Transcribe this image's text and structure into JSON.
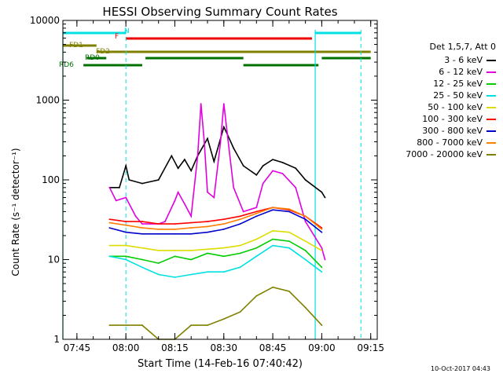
{
  "chart_data": {
    "type": "line",
    "title": "HESSI Observing Summary Count Rates",
    "xlabel": "Start Time (14-Feb-16 07:40:42)",
    "ylabel": "Count Rate (s⁻¹ detector⁻¹)",
    "y_scale": "log",
    "ylim": [
      1,
      10000
    ],
    "xlim": [
      "07:40:42",
      "09:17:00"
    ],
    "x_ticks": [
      "07:45",
      "08:00",
      "08:15",
      "08:30",
      "08:45",
      "09:00",
      "09:15"
    ],
    "y_ticks": [
      "1",
      "10",
      "100",
      "1000",
      "10000"
    ],
    "grid": false,
    "legend_position": "right",
    "legend_title": "Det 1,5,7, Att 0",
    "series": [
      {
        "name": "3 - 6 keV",
        "color": "#000000",
        "x": [
          "07:55",
          "07:58",
          "08:00",
          "08:01",
          "08:05",
          "08:10",
          "08:14",
          "08:16",
          "08:18",
          "08:20",
          "08:22",
          "08:25",
          "08:27",
          "08:30",
          "08:31",
          "08:33",
          "08:36",
          "08:40",
          "08:42",
          "08:45",
          "08:48",
          "08:52",
          "08:55",
          "09:00",
          "09:01"
        ],
        "values": [
          80,
          80,
          150,
          100,
          90,
          100,
          200,
          140,
          180,
          130,
          200,
          330,
          170,
          460,
          380,
          250,
          150,
          115,
          150,
          180,
          165,
          140,
          100,
          70,
          60
        ]
      },
      {
        "name": "6 - 12 keV",
        "color": "#e000e0",
        "x": [
          "07:55",
          "07:57",
          "08:00",
          "08:03",
          "08:05",
          "08:10",
          "08:12",
          "08:15",
          "08:16",
          "08:18",
          "08:20",
          "08:22",
          "08:23",
          "08:24",
          "08:25",
          "08:27",
          "08:29",
          "08:30",
          "08:31",
          "08:33",
          "08:36",
          "08:40",
          "08:42",
          "08:45",
          "08:48",
          "08:52",
          "08:55",
          "09:00",
          "09:01"
        ],
        "values": [
          80,
          55,
          60,
          35,
          28,
          28,
          30,
          55,
          70,
          50,
          35,
          200,
          900,
          300,
          70,
          60,
          300,
          900,
          400,
          80,
          40,
          45,
          90,
          130,
          120,
          80,
          30,
          14,
          10
        ]
      },
      {
        "name": "12 - 25 keV",
        "color": "#00cc00",
        "x": [
          "07:55",
          "08:00",
          "08:05",
          "08:10",
          "08:15",
          "08:20",
          "08:25",
          "08:30",
          "08:35",
          "08:40",
          "08:45",
          "08:50",
          "08:55",
          "09:00"
        ],
        "values": [
          11,
          11,
          10,
          9,
          11,
          10,
          12,
          11,
          12,
          14,
          18,
          17,
          13,
          8
        ]
      },
      {
        "name": "25 - 50 keV",
        "color": "#00e0e0",
        "x": [
          "07:55",
          "08:00",
          "08:05",
          "08:10",
          "08:15",
          "08:20",
          "08:25",
          "08:30",
          "08:35",
          "08:40",
          "08:45",
          "08:50",
          "08:55",
          "09:00"
        ],
        "values": [
          11,
          10,
          8,
          6.5,
          6,
          6.5,
          7,
          7,
          8,
          11,
          15,
          14,
          10,
          7
        ]
      },
      {
        "name": "50 - 100 keV",
        "color": "#dddd00",
        "x": [
          "07:55",
          "08:00",
          "08:05",
          "08:10",
          "08:15",
          "08:20",
          "08:25",
          "08:30",
          "08:35",
          "08:40",
          "08:45",
          "08:50",
          "08:55",
          "09:00"
        ],
        "values": [
          15,
          15,
          14,
          13,
          13,
          13,
          13.5,
          14,
          15,
          18,
          23,
          22,
          17,
          13
        ]
      },
      {
        "name": "100 - 300 keV",
        "color": "#ff0000",
        "x": [
          "07:55",
          "08:00",
          "08:05",
          "08:10",
          "08:15",
          "08:20",
          "08:25",
          "08:30",
          "08:35",
          "08:40",
          "08:45",
          "08:50",
          "08:55",
          "09:00"
        ],
        "values": [
          32,
          30,
          30,
          28,
          28,
          29,
          30,
          32,
          35,
          40,
          45,
          42,
          35,
          25
        ]
      },
      {
        "name": "300 - 800 keV",
        "color": "#0000cc",
        "x": [
          "07:55",
          "08:00",
          "08:05",
          "08:10",
          "08:15",
          "08:20",
          "08:25",
          "08:30",
          "08:35",
          "08:40",
          "08:45",
          "08:50",
          "08:55",
          "09:00"
        ],
        "values": [
          25,
          22,
          21,
          21,
          21,
          21,
          22,
          24,
          28,
          35,
          42,
          40,
          32,
          22
        ]
      },
      {
        "name": "800 - 7000 keV",
        "color": "#ff7f00",
        "x": [
          "07:55",
          "08:00",
          "08:05",
          "08:10",
          "08:15",
          "08:20",
          "08:25",
          "08:30",
          "08:35",
          "08:40",
          "08:45",
          "08:50",
          "08:55",
          "09:00"
        ],
        "values": [
          29,
          27,
          25,
          24,
          24,
          25,
          26,
          28,
          32,
          38,
          45,
          43,
          35,
          24
        ]
      },
      {
        "name": "7000 - 20000 keV",
        "color": "#808000",
        "x": [
          "07:55",
          "08:00",
          "08:05",
          "08:10",
          "08:15",
          "08:20",
          "08:25",
          "08:30",
          "08:35",
          "08:40",
          "08:45",
          "08:50",
          "08:55",
          "09:00"
        ],
        "values": [
          1.5,
          1.5,
          1.5,
          1,
          1,
          1.5,
          1.5,
          1.8,
          2.2,
          3.5,
          4.5,
          4,
          2.5,
          1.5
        ]
      }
    ],
    "flags": [
      {
        "label": "N",
        "color": "#00e0e0",
        "intervals": [
          [
            "07:40:42",
            "08:00"
          ],
          [
            "08:58",
            "09:12"
          ]
        ]
      },
      {
        "label": "F",
        "color": "#ee0000",
        "intervals": [
          [
            "08:00",
            "08:57"
          ]
        ]
      },
      {
        "label": "FD1",
        "color": "#808000",
        "intervals": [
          [
            "07:40:42",
            "07:51"
          ]
        ]
      },
      {
        "label": "FD2",
        "color": "#808000",
        "intervals": [
          [
            "07:51",
            "09:15"
          ]
        ]
      },
      {
        "label": "RD0",
        "color": "#007000",
        "intervals": [
          [
            "07:48",
            "07:54"
          ],
          [
            "08:06",
            "08:36"
          ],
          [
            "09:00",
            "09:15"
          ]
        ]
      },
      {
        "label": "RD6",
        "color": "#007000",
        "intervals": [
          [
            "07:47",
            "08:05"
          ],
          [
            "08:36",
            "08:59"
          ]
        ]
      }
    ],
    "timestamp": "10-Oct-2017 04:43"
  }
}
